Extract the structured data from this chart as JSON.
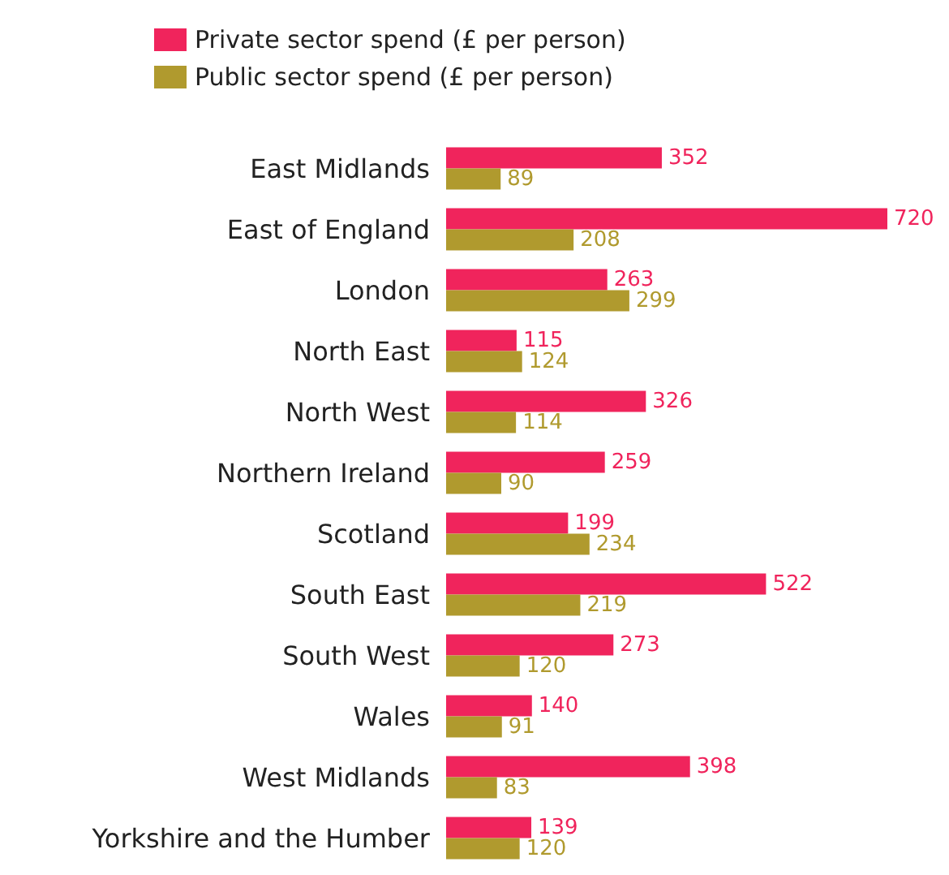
{
  "chart_data": {
    "type": "bar",
    "orientation": "horizontal",
    "categories": [
      "East Midlands",
      "East of England",
      "London",
      "North East",
      "North West",
      "Northern Ireland",
      "Scotland",
      "South East",
      "South West",
      "Wales",
      "West Midlands",
      "Yorkshire and the Humber"
    ],
    "series": [
      {
        "name": "Private sector spend (£ per person)",
        "color": "#f0245c",
        "values": [
          352,
          720,
          263,
          115,
          326,
          259,
          199,
          522,
          273,
          140,
          398,
          139
        ]
      },
      {
        "name": "Public sector spend (£ per person)",
        "color": "#b09a2e",
        "values": [
          89,
          208,
          299,
          124,
          114,
          90,
          234,
          219,
          120,
          91,
          83,
          120
        ]
      }
    ],
    "data_labels": true,
    "legend": "top left",
    "tick_labels": "y"
  }
}
